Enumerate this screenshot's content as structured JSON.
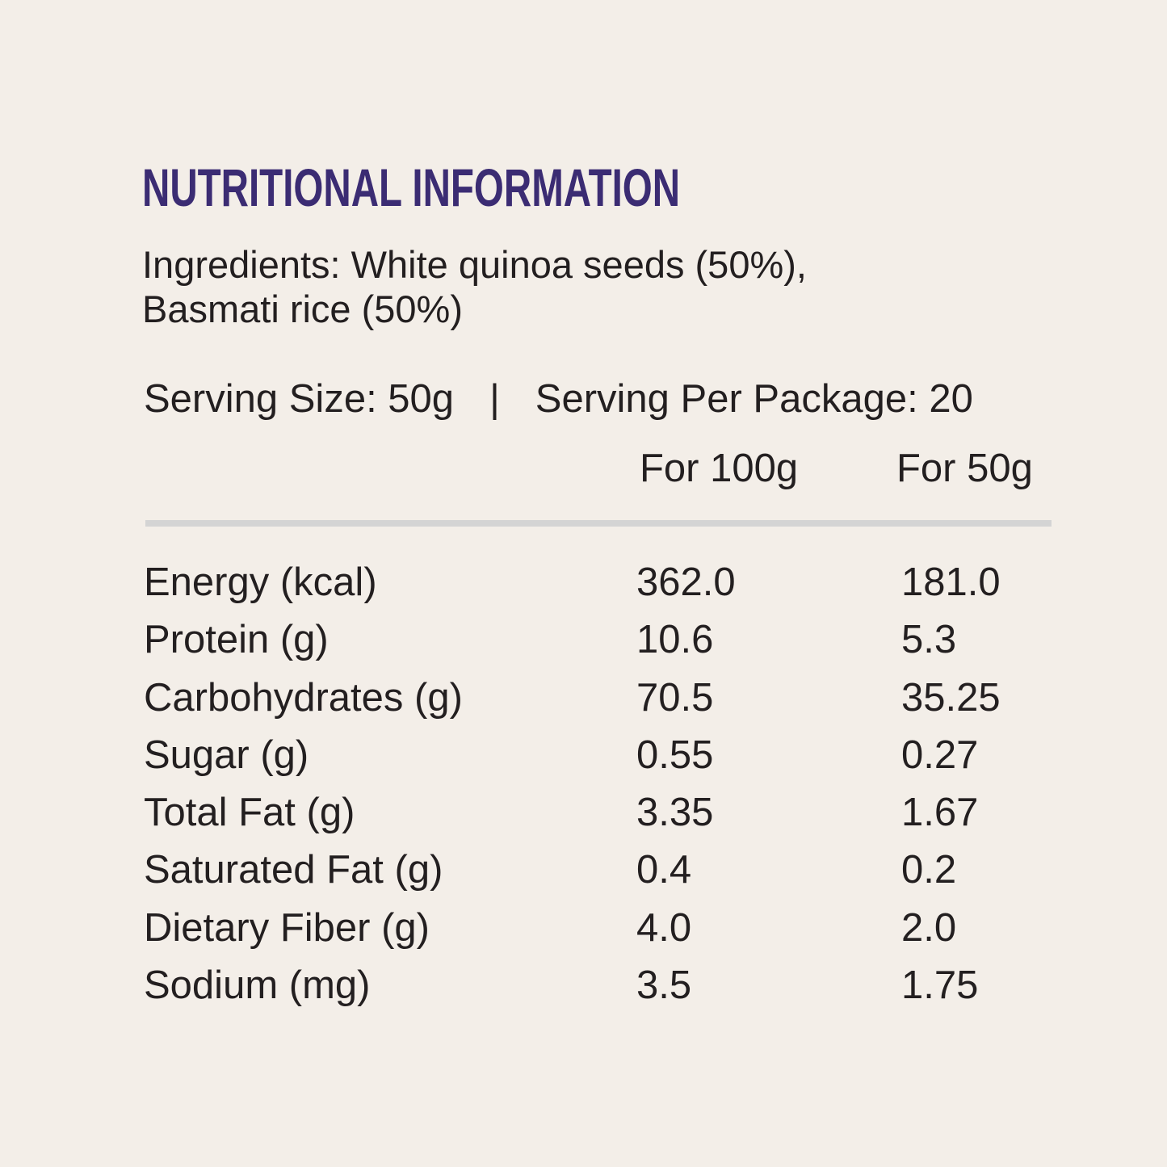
{
  "title": "NUTRITIONAL INFORMATION",
  "ingredients": {
    "line1": "Ingredients: White quinoa seeds (50%),",
    "line2": "Basmati rice (50%)"
  },
  "serving": {
    "size": "Serving Size: 50g",
    "separator": "|",
    "per_package": "Serving Per Package: 20"
  },
  "columns": {
    "per100": "For 100g",
    "per50": "For 50g"
  },
  "colors": {
    "background": "#f3eee8",
    "title": "#3b2c73",
    "text": "#231f20",
    "divider": "#d4d4d4"
  },
  "rows": [
    {
      "name": "Energy (kcal)",
      "per100": "362.0",
      "per50": "181.0"
    },
    {
      "name": "Protein (g)",
      "per100": "10.6",
      "per50": "5.3"
    },
    {
      "name": "Carbohydrates (g)",
      "per100": "70.5",
      "per50": "35.25"
    },
    {
      "name": "Sugar (g)",
      "per100": "0.55",
      "per50": "0.27"
    },
    {
      "name": "Total Fat (g)",
      "per100": "3.35",
      "per50": "1.67"
    },
    {
      "name": "Saturated Fat (g)",
      "per100": "0.4",
      "per50": "0.2"
    },
    {
      "name": "Dietary Fiber (g)",
      "per100": "4.0",
      "per50": "2.0"
    },
    {
      "name": "Sodium (mg)",
      "per100": "3.5",
      "per50": "1.75"
    }
  ]
}
